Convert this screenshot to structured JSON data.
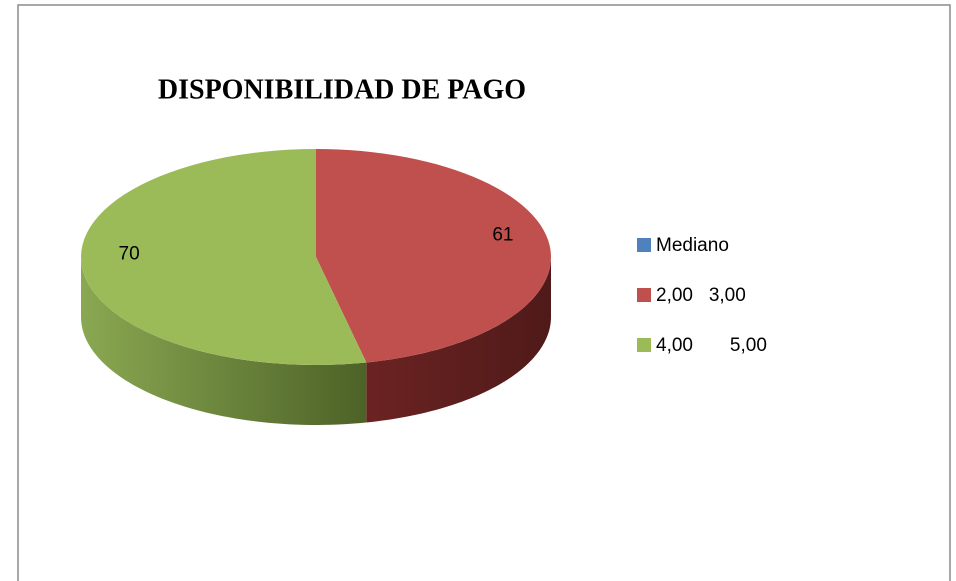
{
  "chart_data": {
    "type": "pie",
    "title": "DISPONIBILIDAD DE PAGO",
    "categories": [
      "Mediano",
      "2,00   3,00",
      "4,00       5,00"
    ],
    "values": [
      null,
      61,
      70
    ],
    "colors": [
      "#4f81bd",
      "#c0504d",
      "#9bbb59"
    ],
    "legend": "right"
  }
}
